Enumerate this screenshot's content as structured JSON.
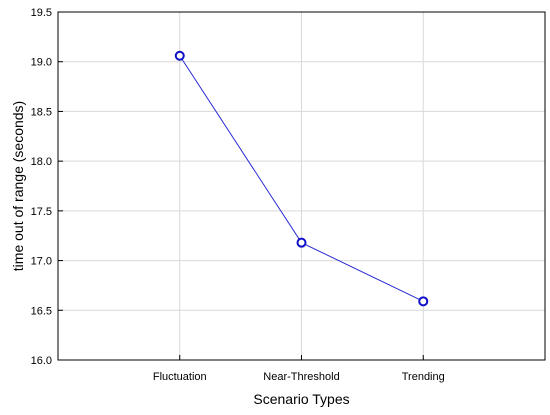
{
  "chart_data": {
    "type": "line",
    "categories": [
      "Fluctuation",
      "Near-Threshold",
      "Trending"
    ],
    "series": [
      {
        "values": [
          19.06,
          17.18,
          16.59
        ]
      }
    ],
    "xlabel": "Scenario Types",
    "ylabel": "time out of range (seconds)",
    "ylim": [
      16.0,
      19.5
    ],
    "yticks": [
      "16.0",
      "16.5",
      "17.0",
      "17.5",
      "18.0",
      "18.5",
      "19.0",
      "19.5"
    ],
    "grid": true,
    "colors": {
      "line": "#2b2bd6",
      "marker": "#1010c8",
      "grid": "#d9d9d9",
      "axis": "#000000"
    }
  }
}
